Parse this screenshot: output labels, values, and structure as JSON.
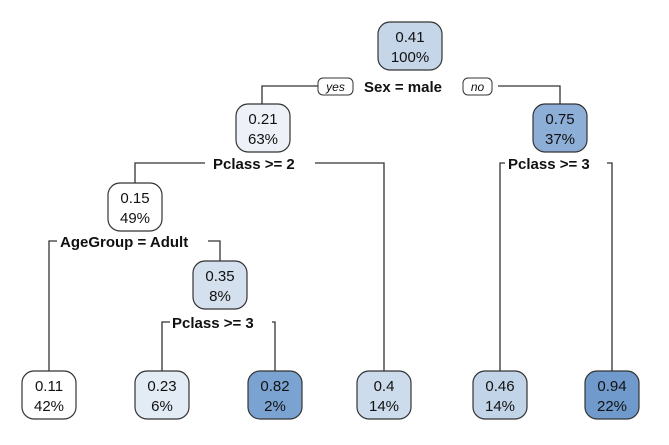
{
  "tree": {
    "root": {
      "value": "0.41",
      "percent": "100%",
      "color": "#c5d6e8"
    },
    "root_split": "Sex = male",
    "yes_label": "yes",
    "no_label": "no",
    "male": {
      "value": "0.21",
      "percent": "63%",
      "color": "#eef2f8"
    },
    "male_split": "Pclass >= 2",
    "female": {
      "value": "0.75",
      "percent": "37%",
      "color": "#8daed6"
    },
    "female_split": "Pclass >= 3",
    "male_lowclass": {
      "value": "0.15",
      "percent": "49%",
      "color": "#ffffff"
    },
    "male_lowclass_split": "AgeGroup = Adult",
    "male_lowclass_child": {
      "value": "0.35",
      "percent": "8%",
      "color": "#d5e0ee"
    },
    "male_lowclass_child_split": "Pclass >= 3",
    "leaves": [
      {
        "value": "0.11",
        "percent": "42%",
        "color": "#ffffff"
      },
      {
        "value": "0.23",
        "percent": "6%",
        "color": "#e3ebf5"
      },
      {
        "value": "0.82",
        "percent": "2%",
        "color": "#7ba3d1"
      },
      {
        "value": "0.4",
        "percent": "14%",
        "color": "#cddcec"
      },
      {
        "value": "0.46",
        "percent": "14%",
        "color": "#c2d4e8"
      },
      {
        "value": "0.94",
        "percent": "22%",
        "color": "#6f9acb"
      }
    ]
  }
}
